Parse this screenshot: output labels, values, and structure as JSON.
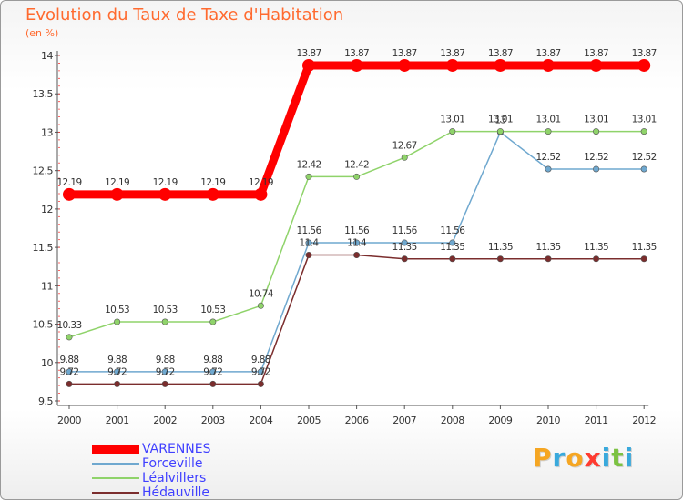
{
  "title": "Evolution du Taux de Taxe d'Habitation",
  "subtitle": "(en %)",
  "logo": {
    "text": "Proxiti",
    "letters": [
      "P",
      "r",
      "o",
      "x",
      "i",
      "t",
      "i"
    ],
    "colors": [
      "#f5a623",
      "#39a9dc",
      "#f5a623",
      "#ff3b30",
      "#39a9dc",
      "#7cc242",
      "#39a9dc"
    ]
  },
  "chart_data": {
    "type": "line",
    "title": "Evolution du Taux de Taxe d'Habitation",
    "ylabel": "(en %)",
    "xlabel": "",
    "ylim": [
      9.5,
      14
    ],
    "yticks": [
      "9.5",
      "10",
      "10.5",
      "11",
      "11.5",
      "12",
      "12.5",
      "13",
      "13.5",
      "14"
    ],
    "categories": [
      "2000",
      "2001",
      "2002",
      "2003",
      "2004",
      "2005",
      "2006",
      "2007",
      "2008",
      "2009",
      "2010",
      "2011",
      "2012"
    ],
    "grid": false,
    "legend_position": "bottom-left",
    "series": [
      {
        "name": "VARENNES",
        "color": "#ff0000",
        "values": [
          12.19,
          12.19,
          12.19,
          12.19,
          12.19,
          13.87,
          13.87,
          13.87,
          13.87,
          13.87,
          13.87,
          13.87,
          13.87
        ],
        "labels": [
          "12.19",
          "12.19",
          "12.19",
          "12.19",
          "12.19",
          "13.87",
          "13.87",
          "13.87",
          "13.87",
          "13.87",
          "13.87",
          "13.87",
          "13.87"
        ]
      },
      {
        "name": "Forceville",
        "color": "#6fa8cf",
        "values": [
          9.88,
          9.88,
          9.88,
          9.88,
          9.88,
          11.56,
          11.56,
          11.56,
          11.56,
          13.0,
          12.52,
          12.52,
          12.52
        ],
        "labels": [
          "9.88",
          "9.88",
          "9.88",
          "9.88",
          "9.88",
          "11.56",
          "11.56",
          "11.56",
          "11.56",
          "13",
          "12.52",
          "12.52",
          "12.52"
        ]
      },
      {
        "name": "Léalvillers",
        "color": "#8fd36a",
        "values": [
          10.33,
          10.53,
          10.53,
          10.53,
          10.74,
          12.42,
          12.42,
          12.67,
          13.01,
          13.01,
          13.01,
          13.01,
          13.01
        ],
        "labels": [
          "10.33",
          "10.53",
          "10.53",
          "10.53",
          "10.74",
          "12.42",
          "12.42",
          "12.67",
          "13.01",
          "13.01",
          "13.01",
          "13.01",
          "13.01"
        ]
      },
      {
        "name": "Hédauville",
        "color": "#7b2d2d",
        "values": [
          9.72,
          9.72,
          9.72,
          9.72,
          9.72,
          11.4,
          11.4,
          11.35,
          11.35,
          11.35,
          11.35,
          11.35,
          11.35
        ],
        "labels": [
          "9.72",
          "9.72",
          "9.72",
          "9.72",
          "9.72",
          "11.4",
          "11.4",
          "11.35",
          "11.35",
          "11.35",
          "11.35",
          "11.35",
          "11.35"
        ]
      }
    ]
  }
}
